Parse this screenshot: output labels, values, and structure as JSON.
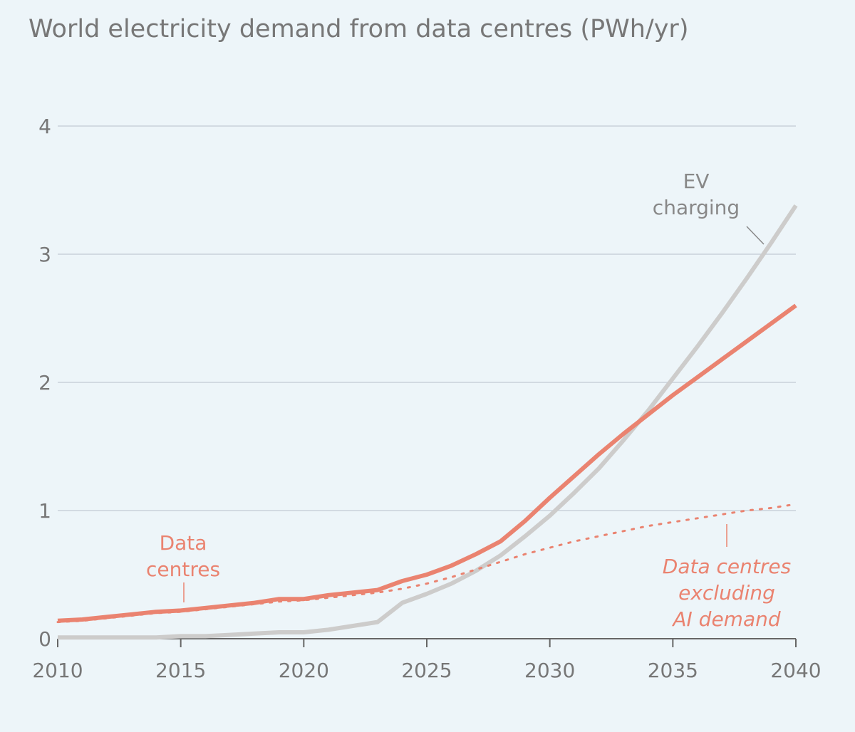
{
  "chart_data": {
    "type": "line",
    "title": "World electricity demand from data centres (PWh/yr)",
    "x": [
      2010,
      2011,
      2012,
      2013,
      2014,
      2015,
      2016,
      2017,
      2018,
      2019,
      2020,
      2021,
      2022,
      2023,
      2024,
      2025,
      2026,
      2027,
      2028,
      2029,
      2030,
      2031,
      2032,
      2033,
      2034,
      2035,
      2036,
      2037,
      2038,
      2039,
      2040
    ],
    "series": [
      {
        "name": "EV charging",
        "color": "#cdcccb",
        "style": "solid",
        "values": [
          0.01,
          0.01,
          0.01,
          0.01,
          0.01,
          0.02,
          0.02,
          0.03,
          0.04,
          0.05,
          0.05,
          0.07,
          0.1,
          0.13,
          0.28,
          0.35,
          0.43,
          0.53,
          0.65,
          0.8,
          0.96,
          1.14,
          1.33,
          1.55,
          1.78,
          2.03,
          2.28,
          2.54,
          2.81,
          3.09,
          3.38
        ]
      },
      {
        "name": "Data centres excluding AI demand",
        "color": "#ea8370",
        "style": "dotted",
        "values": [
          0.13,
          0.14,
          0.16,
          0.18,
          0.2,
          0.21,
          0.23,
          0.25,
          0.27,
          0.29,
          0.3,
          0.32,
          0.34,
          0.36,
          0.39,
          0.43,
          0.48,
          0.54,
          0.6,
          0.66,
          0.71,
          0.76,
          0.8,
          0.84,
          0.88,
          0.91,
          0.94,
          0.97,
          1.0,
          1.02,
          1.05
        ]
      },
      {
        "name": "Data centres",
        "color": "#ea8370",
        "style": "solid",
        "values": [
          0.14,
          0.15,
          0.17,
          0.19,
          0.21,
          0.22,
          0.24,
          0.26,
          0.28,
          0.31,
          0.31,
          0.34,
          0.36,
          0.38,
          0.45,
          0.5,
          0.57,
          0.66,
          0.76,
          0.92,
          1.1,
          1.27,
          1.44,
          1.6,
          1.75,
          1.9,
          2.04,
          2.18,
          2.32,
          2.46,
          2.6
        ]
      }
    ],
    "annotations": [
      {
        "lines": [
          "Data",
          "centres"
        ],
        "series": 2
      },
      {
        "lines": [
          "EV",
          "charging"
        ],
        "series": 0
      },
      {
        "lines": [
          "Data centres",
          "excluding",
          "AI demand"
        ],
        "series": 1
      }
    ],
    "xlim": [
      2010,
      2040
    ],
    "xticks": [
      2010,
      2015,
      2020,
      2025,
      2030,
      2035,
      2040
    ],
    "ylim": [
      0,
      4
    ],
    "yticks": [
      0,
      1,
      2,
      3,
      4
    ],
    "grid": true
  }
}
